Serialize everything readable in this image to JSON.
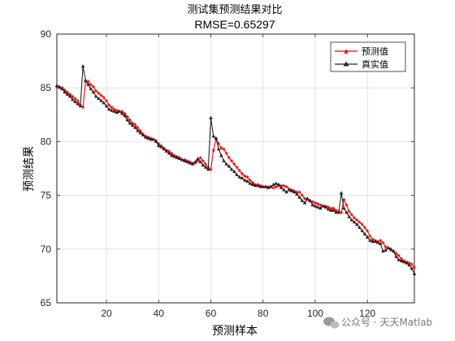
{
  "chart_data": {
    "type": "line",
    "title": "测试集预测结果对比",
    "subtitle": "RMSE=0.65297",
    "xlabel": "预测样本",
    "ylabel": "预测结果",
    "xlim": [
      1,
      138
    ],
    "ylim": [
      65,
      90
    ],
    "xticks": [
      20,
      40,
      60,
      80,
      100,
      120
    ],
    "yticks": [
      65,
      70,
      75,
      80,
      85,
      90
    ],
    "grid": true,
    "legend_position": "top-right",
    "colors": {
      "predicted": "#ff0000",
      "actual": "#262626",
      "grid": "#dcdcdc",
      "axis": "#262626"
    },
    "series": [
      {
        "name": "预测值",
        "marker": "star",
        "values": [
          85.1,
          85.0,
          85.0,
          84.8,
          84.6,
          84.4,
          84.2,
          84.0,
          83.8,
          83.4,
          83.2,
          85.6,
          85.6,
          85.3,
          85.1,
          84.7,
          84.5,
          84.3,
          84.1,
          83.8,
          83.4,
          83.2,
          83.0,
          82.9,
          82.8,
          82.8,
          82.6,
          82.3,
          82.0,
          81.7,
          81.6,
          81.3,
          81.0,
          80.7,
          80.5,
          80.4,
          80.3,
          80.2,
          80.1,
          79.8,
          79.6,
          79.4,
          79.2,
          79.1,
          78.9,
          78.7,
          78.6,
          78.5,
          78.3,
          78.3,
          78.2,
          78.1,
          78.0,
          78.0,
          78.2,
          78.5,
          78.2,
          77.9,
          77.6,
          77.4,
          79.2,
          80.3,
          79.8,
          79.4,
          79.3,
          78.9,
          78.5,
          78.2,
          77.9,
          77.6,
          77.3,
          77.0,
          76.8,
          76.7,
          76.4,
          76.2,
          76.0,
          76.0,
          75.9,
          75.8,
          75.8,
          75.8,
          75.8,
          75.7,
          75.8,
          75.9,
          75.9,
          75.9,
          75.8,
          75.6,
          75.5,
          75.4,
          75.3,
          75.3,
          75.0,
          74.7,
          74.6,
          74.5,
          74.4,
          74.3,
          74.2,
          74.1,
          74.0,
          74.0,
          73.9,
          73.8,
          73.8,
          73.6,
          73.5,
          73.4,
          74.6,
          74.1,
          73.5,
          73.2,
          72.9,
          72.7,
          72.5,
          72.3,
          72.0,
          71.7,
          71.2,
          70.9,
          70.8,
          70.7,
          70.8,
          70.6,
          70.2,
          70.1,
          69.9,
          69.8,
          69.6,
          69.4,
          69.1,
          68.9,
          68.8,
          68.7,
          68.6,
          68.3
        ]
      },
      {
        "name": "真实值",
        "marker": "triangle",
        "values": [
          85.2,
          85.1,
          84.9,
          84.6,
          84.4,
          84.2,
          83.9,
          83.7,
          83.5,
          83.3,
          87.0,
          85.7,
          85.3,
          84.9,
          84.6,
          84.2,
          84.0,
          83.8,
          83.6,
          83.3,
          83.0,
          82.9,
          82.8,
          82.7,
          82.8,
          82.6,
          82.4,
          82.0,
          81.7,
          81.5,
          81.3,
          81.0,
          80.8,
          80.6,
          80.4,
          80.3,
          80.2,
          80.2,
          80.0,
          79.6,
          79.5,
          79.3,
          79.1,
          78.9,
          78.7,
          78.6,
          78.5,
          78.4,
          78.3,
          78.2,
          78.1,
          78.0,
          77.9,
          78.1,
          78.4,
          78.1,
          77.8,
          77.6,
          77.4,
          82.2,
          80.5,
          80.3,
          79.3,
          78.7,
          78.2,
          77.9,
          77.7,
          77.4,
          77.2,
          76.9,
          76.7,
          76.6,
          76.4,
          76.3,
          76.1,
          76.0,
          75.9,
          75.9,
          75.8,
          75.8,
          75.8,
          75.7,
          75.8,
          76.0,
          76.1,
          76.0,
          75.7,
          75.5,
          75.3,
          75.5,
          75.4,
          75.3,
          75.1,
          74.8,
          74.5,
          74.3,
          74.7,
          74.5,
          74.1,
          74.0,
          73.9,
          73.8,
          74.0,
          73.9,
          73.7,
          73.6,
          73.6,
          73.4,
          73.4,
          75.2,
          73.8,
          73.4,
          73.0,
          72.7,
          72.5,
          72.3,
          72.0,
          71.7,
          71.4,
          71.1,
          70.8,
          70.7,
          70.7,
          70.6,
          70.5,
          69.8,
          69.9,
          70.1,
          70.0,
          69.8,
          69.3,
          69.0,
          68.9,
          68.8,
          68.7,
          68.5,
          68.2,
          67.7
        ]
      }
    ]
  },
  "watermark": {
    "text": "公众号 · 天天Matlab",
    "icon": "wechat-bubble-icon"
  }
}
